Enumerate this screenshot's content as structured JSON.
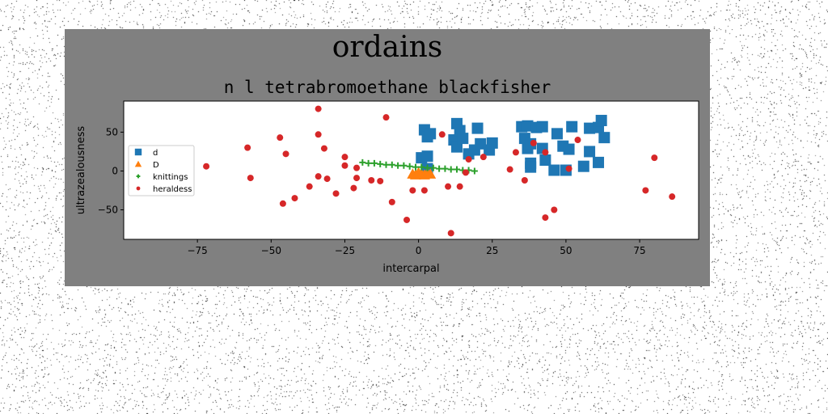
{
  "suptitle": "ordains",
  "chart_data": {
    "type": "scatter",
    "title": "n l tetrabromoethane blackfisher",
    "xlabel": "intercarpal",
    "ylabel": "ultrazealousness",
    "xlim": [
      -100,
      95
    ],
    "ylim": [
      -88,
      90
    ],
    "xticks": [
      -75,
      -50,
      -25,
      0,
      25,
      50,
      75
    ],
    "yticks": [
      -50,
      0,
      50
    ],
    "xtick_labels": [
      "−75",
      "−50",
      "−25",
      "0",
      "25",
      "50",
      "75"
    ],
    "ytick_labels": [
      "−50",
      "0",
      "50"
    ],
    "grid": false,
    "legend_position": "center-left",
    "series": [
      {
        "name": "d",
        "marker": "square",
        "color": "#1f77b4",
        "points": [
          [
            2,
            53
          ],
          [
            3,
            44
          ],
          [
            4,
            48
          ],
          [
            1,
            17
          ],
          [
            3,
            19
          ],
          [
            3,
            3
          ],
          [
            12,
            40
          ],
          [
            13,
            61
          ],
          [
            13,
            31
          ],
          [
            14,
            52
          ],
          [
            15,
            42
          ],
          [
            17,
            22
          ],
          [
            19,
            27
          ],
          [
            20,
            55
          ],
          [
            21,
            35
          ],
          [
            24,
            27
          ],
          [
            25,
            36
          ],
          [
            35,
            57
          ],
          [
            36,
            42
          ],
          [
            37,
            29
          ],
          [
            37,
            58
          ],
          [
            38,
            10
          ],
          [
            38,
            35
          ],
          [
            38,
            5
          ],
          [
            40,
            56
          ],
          [
            42,
            57
          ],
          [
            42,
            29
          ],
          [
            43,
            14
          ],
          [
            46,
            1
          ],
          [
            47,
            48
          ],
          [
            49,
            32
          ],
          [
            50,
            1
          ],
          [
            51,
            28
          ],
          [
            52,
            57
          ],
          [
            56,
            6
          ],
          [
            58,
            25
          ],
          [
            58,
            55
          ],
          [
            61,
            11
          ],
          [
            61,
            56
          ],
          [
            62,
            65
          ],
          [
            63,
            43
          ]
        ]
      },
      {
        "name": "D",
        "marker": "triangle",
        "color": "#ff7f0e",
        "points": [
          [
            -2,
            -4
          ],
          [
            -1,
            -5
          ],
          [
            0,
            -3
          ],
          [
            1,
            -4
          ],
          [
            2,
            -5
          ],
          [
            3,
            -3
          ],
          [
            4,
            -4
          ],
          [
            0,
            -2
          ]
        ]
      },
      {
        "name": "knittings",
        "marker": "plus",
        "color": "#2ca02c",
        "points": [
          [
            -19,
            11
          ],
          [
            -17,
            10
          ],
          [
            -15,
            10
          ],
          [
            -13,
            9
          ],
          [
            -11,
            8
          ],
          [
            -9,
            8
          ],
          [
            -7,
            7
          ],
          [
            -5,
            7
          ],
          [
            -3,
            6
          ],
          [
            -1,
            5
          ],
          [
            1,
            5
          ],
          [
            3,
            4
          ],
          [
            5,
            4
          ],
          [
            7,
            3
          ],
          [
            9,
            3
          ],
          [
            11,
            2
          ],
          [
            13,
            2
          ],
          [
            15,
            1
          ],
          [
            17,
            1
          ],
          [
            19,
            0
          ]
        ]
      },
      {
        "name": "heraldess",
        "marker": "circle",
        "color": "#d62728",
        "points": [
          [
            -72,
            6
          ],
          [
            -58,
            30
          ],
          [
            -57,
            -9
          ],
          [
            -47,
            43
          ],
          [
            -46,
            -42
          ],
          [
            -45,
            22
          ],
          [
            -42,
            -35
          ],
          [
            -37,
            -20
          ],
          [
            -34,
            80
          ],
          [
            -34,
            47
          ],
          [
            -34,
            -7
          ],
          [
            -32,
            29
          ],
          [
            -31,
            -10
          ],
          [
            -28,
            -29
          ],
          [
            -25,
            18
          ],
          [
            -25,
            7
          ],
          [
            -22,
            -22
          ],
          [
            -21,
            4
          ],
          [
            -21,
            -9
          ],
          [
            -16,
            -12
          ],
          [
            -13,
            -13
          ],
          [
            -11,
            69
          ],
          [
            -9,
            -40
          ],
          [
            -4,
            -63
          ],
          [
            -2,
            -25
          ],
          [
            2,
            -25
          ],
          [
            8,
            47
          ],
          [
            10,
            -20
          ],
          [
            11,
            -80
          ],
          [
            14,
            -20
          ],
          [
            16,
            -2
          ],
          [
            17,
            15
          ],
          [
            22,
            18
          ],
          [
            31,
            2
          ],
          [
            33,
            24
          ],
          [
            36,
            -12
          ],
          [
            39,
            36
          ],
          [
            43,
            24
          ],
          [
            43,
            -60
          ],
          [
            46,
            -50
          ],
          [
            51,
            3
          ],
          [
            54,
            40
          ],
          [
            77,
            -25
          ],
          [
            80,
            17
          ],
          [
            86,
            -33
          ]
        ]
      }
    ]
  }
}
